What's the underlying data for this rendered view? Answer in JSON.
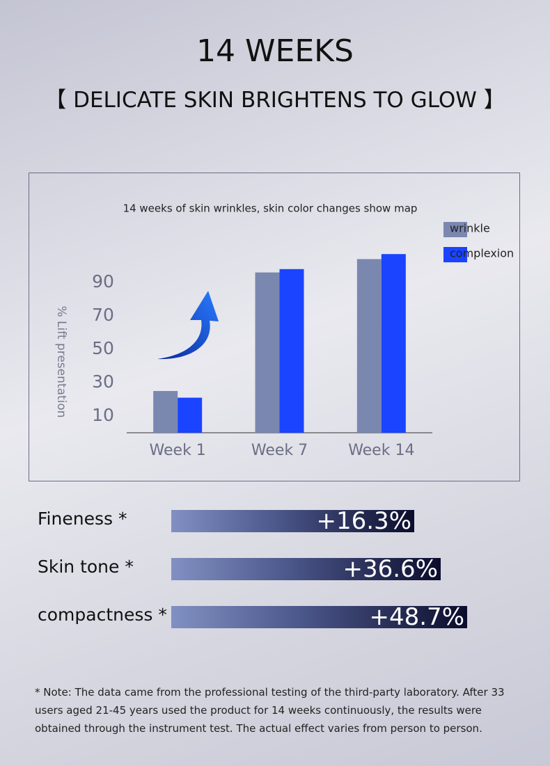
{
  "header": {
    "title": "14 WEEKS",
    "subtitle": "【 DELICATE SKIN BRIGHTENS TO GLOW 】"
  },
  "chart_data": {
    "type": "bar",
    "title": "14 weeks of skin wrinkles, skin color changes show map",
    "y_label": "% Lift presentation",
    "categories": [
      "Week 1",
      "Week 7",
      "Week 14"
    ],
    "series": [
      {
        "name": "wrinkle",
        "color": "#7a88b0",
        "values": [
          25,
          96,
          104
        ]
      },
      {
        "name": "complexion",
        "color": "#1a44ff",
        "values": [
          21,
          98,
          107
        ]
      }
    ],
    "ylim": [
      0,
      110
    ],
    "yticks": [
      10,
      30,
      50,
      70,
      90
    ],
    "grid": false,
    "legend": "top-right"
  },
  "stats": [
    {
      "label": "Fineness *",
      "value": "+16.3%"
    },
    {
      "label": "Skin tone  *",
      "value": "+36.6%"
    },
    {
      "label": "compactness  *",
      "value": "+48.7%"
    }
  ],
  "note": "* Note: The data came from the professional testing of the third-party laboratory. After 33 users aged 21-45 years used the product for 14 weeks continuously, the results were obtained through the instrument test. The actual effect varies from person to person."
}
